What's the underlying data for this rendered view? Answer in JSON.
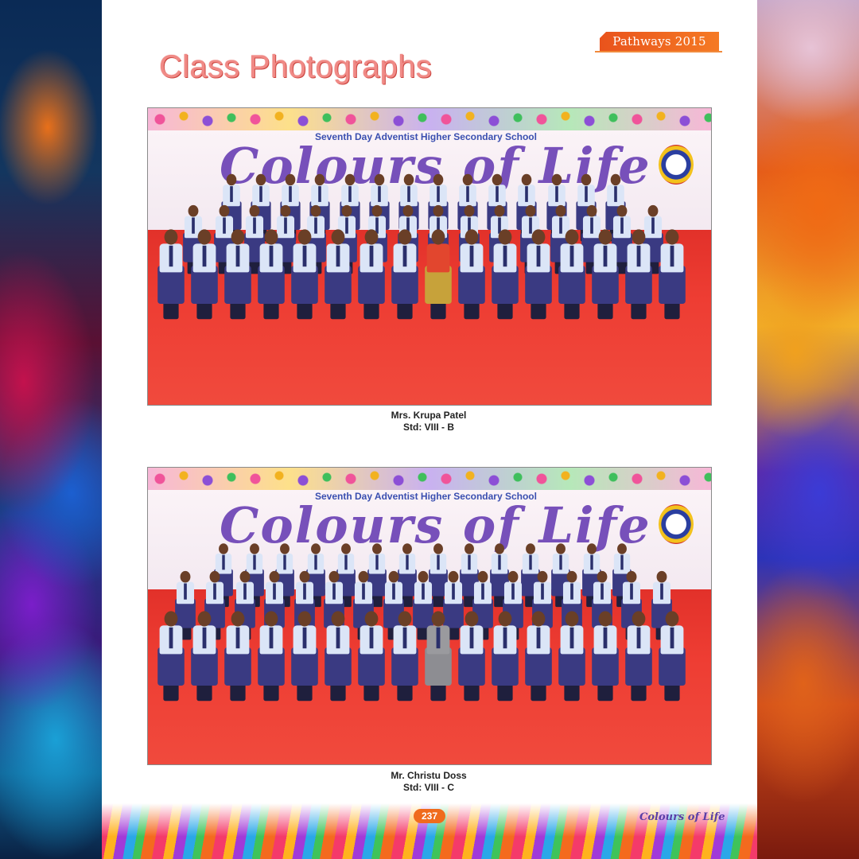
{
  "tag": "Pathways 2015",
  "page_title": "Class Photographs",
  "photos": [
    {
      "school_name": "Seventh Day Adventist Higher Secondary School",
      "banner": "Colours of Life",
      "caption_teacher": "Mrs. Krupa Patel",
      "caption_std": "Std: VIII - B"
    },
    {
      "school_name": "Seventh Day Adventist Higher Secondary School",
      "banner": "Colours of Life",
      "caption_teacher": "Mr. Christu Doss",
      "caption_std": "Std: VIII - C"
    }
  ],
  "footer": {
    "page_number": "237",
    "brand": "Colours of Life"
  }
}
